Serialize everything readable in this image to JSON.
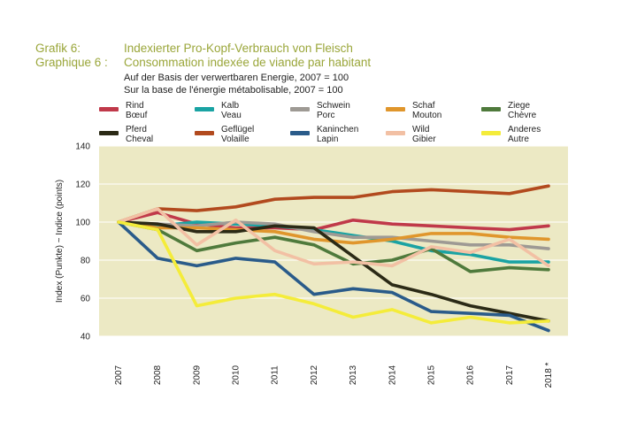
{
  "header": {
    "label_de": "Grafik 6:",
    "label_fr": "Graphique 6 :",
    "title_de": "Indexierter Pro-Kopf-Verbrauch von Fleisch",
    "title_fr": "Consommation indexée de viande par habitant",
    "subtitle_de": "Auf der Basis der verwertbaren Energie, 2007 = 100",
    "subtitle_fr": "Sur la base de l'énergie métabolisable, 2007 = 100"
  },
  "chart_data": {
    "type": "line",
    "x": [
      "2007",
      "2008",
      "2009",
      "2010",
      "2011",
      "2012",
      "2013",
      "2014",
      "2015",
      "2016",
      "2017",
      "2018 *"
    ],
    "ylabel": "Index (Punkte)   ~   Indice (points)",
    "ylim": [
      40,
      140
    ],
    "yticks": [
      40,
      60,
      80,
      100,
      120,
      140
    ],
    "grid": "horizontal",
    "legend_position": "top",
    "background": "#ece9c4",
    "series": [
      {
        "name": "Rind\nBœuf",
        "color": "#c0394a",
        "values": [
          100,
          105,
          99,
          97,
          97,
          96,
          101,
          99,
          98,
          97,
          96,
          98
        ]
      },
      {
        "name": "Kalb\nVeau",
        "color": "#1aa3a3",
        "values": [
          100,
          98,
          100,
          99,
          98,
          96,
          93,
          90,
          85,
          83,
          79,
          79
        ]
      },
      {
        "name": "Schwein\nPorc",
        "color": "#9e9a94",
        "values": [
          100,
          99,
          98,
          100,
          99,
          95,
          92,
          92,
          90,
          88,
          88,
          86
        ]
      },
      {
        "name": "Schaf\nMouton",
        "color": "#e0962c",
        "values": [
          100,
          97,
          97,
          96,
          95,
          91,
          89,
          91,
          94,
          94,
          92,
          91
        ]
      },
      {
        "name": "Ziege\nChèvre",
        "color": "#4f7a3c",
        "values": [
          100,
          96,
          85,
          89,
          92,
          88,
          78,
          80,
          86,
          74,
          76,
          75
        ]
      },
      {
        "name": "Pferd\nCheval",
        "color": "#2b2a16",
        "values": [
          100,
          99,
          95,
          95,
          98,
          97,
          82,
          67,
          62,
          56,
          52,
          48
        ]
      },
      {
        "name": "Geflügel\nVolaille",
        "color": "#b24a1e",
        "values": [
          100,
          107,
          106,
          108,
          112,
          113,
          113,
          116,
          117,
          116,
          115,
          119
        ]
      },
      {
        "name": "Kaninchen\nLapin",
        "color": "#2a5b8a",
        "values": [
          100,
          81,
          77,
          81,
          79,
          62,
          65,
          63,
          53,
          52,
          51,
          43
        ]
      },
      {
        "name": "Wild\nGibier",
        "color": "#f2c0a4",
        "values": [
          100,
          107,
          88,
          101,
          85,
          78,
          79,
          77,
          87,
          84,
          91,
          77
        ]
      },
      {
        "name": "Anderes\nAutre",
        "color": "#f4ec3a",
        "values": [
          100,
          96,
          56,
          60,
          62,
          57,
          50,
          54,
          47,
          50,
          47,
          48
        ]
      }
    ]
  }
}
